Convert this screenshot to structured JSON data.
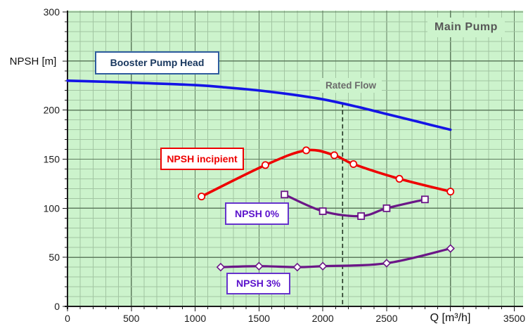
{
  "chart_data": {
    "type": "line",
    "title": "Main Pump",
    "xlabel": "Q [m³/h]",
    "ylabel": "NPSH [m]",
    "xlim": [
      0,
      3500
    ],
    "ylim": [
      0,
      300
    ],
    "grid": {
      "on": true,
      "minor_x": 100,
      "minor_y": 10,
      "major_x": 500,
      "major_y": 50
    },
    "x_ticks": [
      {
        "v": 0,
        "label": "0"
      },
      {
        "v": 500,
        "label": "500"
      },
      {
        "v": 1000,
        "label": "1000"
      },
      {
        "v": 1500,
        "label": "1500"
      },
      {
        "v": 2000,
        "label": "2000"
      },
      {
        "v": 2500,
        "label": "2500"
      },
      {
        "v": 3500,
        "label": "3500"
      }
    ],
    "x_label_at": 3000,
    "y_ticks": [
      {
        "v": 0,
        "label": "0"
      },
      {
        "v": 50,
        "label": "50"
      },
      {
        "v": 100,
        "label": "100"
      },
      {
        "v": 150,
        "label": "150"
      },
      {
        "v": 200,
        "label": "200"
      },
      {
        "v": 300,
        "label": "300"
      }
    ],
    "y_label_at": 250,
    "annotations": [
      {
        "type": "vline_dashed",
        "label": "Rated Flow",
        "x": 2155,
        "y_from": 0,
        "y_to": 207
      }
    ],
    "series": [
      {
        "name": "Booster Pump Head",
        "color_key": "blue",
        "marker": "none",
        "smooth": true,
        "points": [
          [
            0,
            230
          ],
          [
            500,
            228
          ],
          [
            1000,
            225.5
          ],
          [
            1250,
            223
          ],
          [
            1500,
            220
          ],
          [
            1750,
            216
          ],
          [
            2000,
            211
          ],
          [
            2250,
            204
          ],
          [
            2500,
            196
          ],
          [
            2750,
            188
          ],
          [
            3000,
            180
          ]
        ]
      },
      {
        "name": "NPSH incipient",
        "color_key": "red",
        "marker": "circle",
        "smooth": true,
        "points": [
          [
            1050,
            112
          ],
          [
            1550,
            144
          ],
          [
            1870,
            159
          ],
          [
            2090,
            154
          ],
          [
            2240,
            145
          ],
          [
            2600,
            130
          ],
          [
            3000,
            117
          ]
        ]
      },
      {
        "name": "NPSH 0%",
        "color_key": "purple",
        "marker": "square",
        "smooth": true,
        "points": [
          [
            1700,
            114
          ],
          [
            2000,
            97
          ],
          [
            2300,
            92
          ],
          [
            2500,
            100
          ],
          [
            2800,
            109
          ]
        ]
      },
      {
        "name": "NPSH 3%",
        "color_key": "purple",
        "marker": "diamond",
        "smooth": true,
        "points": [
          [
            1200,
            40
          ],
          [
            1500,
            41
          ],
          [
            1800,
            40
          ],
          [
            2000,
            41
          ],
          [
            2500,
            44
          ],
          [
            3000,
            59
          ]
        ]
      }
    ],
    "legend_position": "on-chart-boxes",
    "colors": {
      "blue": "#1414e6",
      "red": "#ee0000",
      "purple": "#6b1687",
      "plot_bg": "#ccf3cc",
      "grid_minor": "#a2c5a2",
      "grid_major": "#5f7d5f",
      "axis": "#1a1a1a",
      "tick_text": "#1a1a1a",
      "dashed_line": "#223322"
    }
  }
}
